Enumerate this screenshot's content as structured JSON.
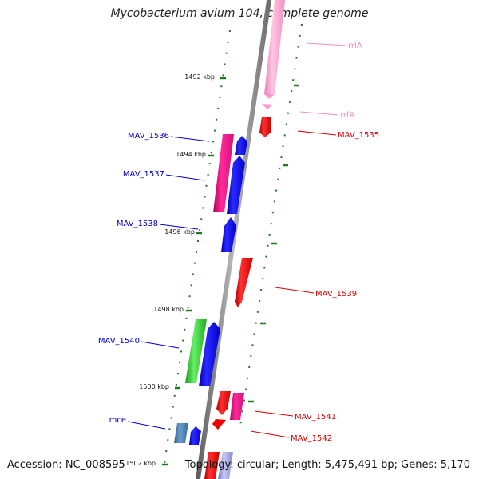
{
  "title": "Mycobacterium avium 104, complete genome",
  "footer": {
    "accession_label": "Accession:",
    "accession": "NC_008595",
    "topology_label": "Topology:",
    "topology": "circular",
    "length_label": "Length:",
    "length": "5,475,491 bp",
    "genes_label": "Genes:",
    "genes": "5,170"
  },
  "colors": {
    "backbone": "#8a8a8a",
    "tick_green": "#1e7a1e",
    "reverse_label": "#0000cc",
    "forward_label": "#dd0000",
    "rrna_label": "#f28cc0"
  },
  "scale_labels": [
    "1492 kbp",
    "1494 kbp",
    "1496 kbp",
    "1498 kbp",
    "1500 kbp",
    "1502 kbp"
  ],
  "features": [
    {
      "name": "rrlA",
      "strand": "forward",
      "type": "rRNA",
      "color": "#ff99cc"
    },
    {
      "name": "rrfA",
      "strand": "forward",
      "type": "rRNA",
      "color": "#ff99cc"
    },
    {
      "name": "MAV_1535",
      "strand": "forward",
      "type": "CDS",
      "color": "#ee0000"
    },
    {
      "name": "MAV_1536",
      "strand": "reverse",
      "type": "CDS",
      "color": "#0000ee"
    },
    {
      "name": "MAV_1537",
      "strand": "reverse",
      "type": "CDS",
      "color": "#0000ee"
    },
    {
      "name": "MAV_1538",
      "strand": "reverse",
      "type": "CDS",
      "color": "#0000ee"
    },
    {
      "name": "MAV_1539",
      "strand": "forward",
      "type": "CDS",
      "color": "#ee0000"
    },
    {
      "name": "MAV_1540",
      "strand": "reverse",
      "type": "CDS",
      "color": "#0000ee"
    },
    {
      "name": "MAV_1541",
      "strand": "forward",
      "type": "CDS",
      "color": "#ee0000"
    },
    {
      "name": "MAV_1542",
      "strand": "forward",
      "type": "CDS",
      "color": "#ee0000"
    },
    {
      "name": "mce",
      "strand": "reverse",
      "type": "CDS",
      "color": "#0000ee"
    }
  ]
}
